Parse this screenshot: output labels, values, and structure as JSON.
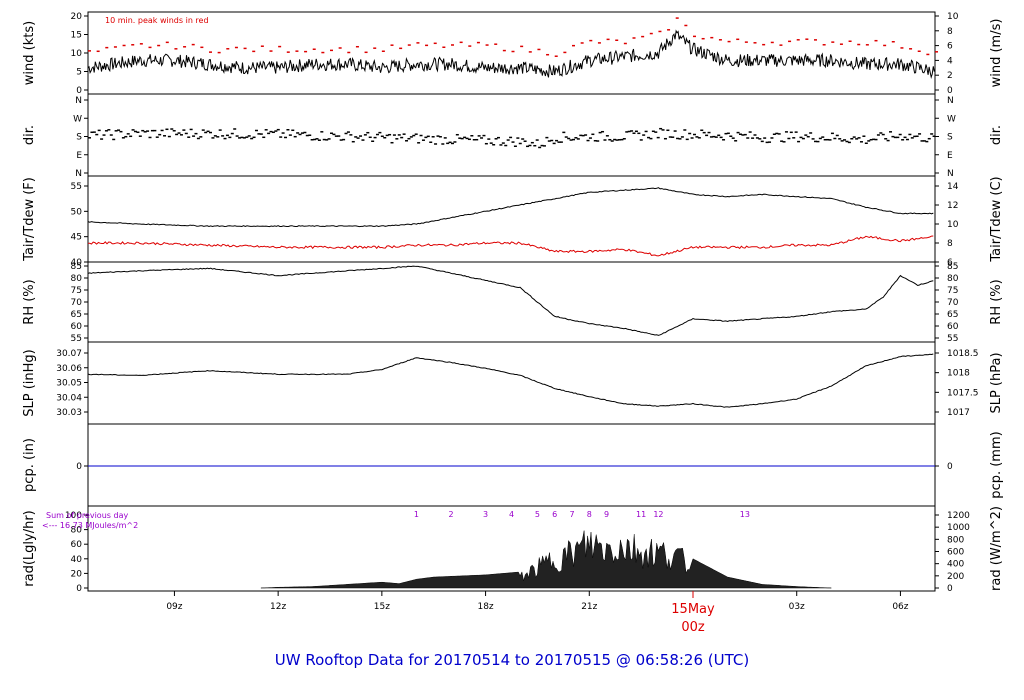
{
  "chart_data": {
    "type": "line",
    "title": "UW Rooftop Data for 20170514  to  20170515 @ 06:58:26  (UTC)",
    "x_axis": {
      "start": "2017-05-14T06:30Z",
      "end": "2017-05-15T07:00Z",
      "tick_labels": [
        "09z",
        "12z",
        "15z",
        "18z",
        "21z",
        "03z",
        "06z"
      ],
      "day_marker": {
        "date": "15May",
        "time": "00z",
        "color": "#dd0000"
      }
    },
    "panels": [
      {
        "id": "wind",
        "ylabel_left": "wind (kts)",
        "ylabel_right": "wind (m/s)",
        "ylim": [
          0,
          20
        ],
        "left_ticks": [
          "20",
          "15",
          "10",
          "5",
          "0"
        ],
        "right_ticks": [
          "10",
          "8",
          "6",
          "4",
          "2",
          "0"
        ],
        "annotation": "10 min. peak winds in red",
        "series": [
          {
            "color": "#000000",
            "hours": [
              6.5,
              8,
              9,
              10,
              11,
              12,
              13,
              14,
              15,
              16,
              17,
              18,
              19,
              20,
              21,
              22,
              23,
              23.5,
              24,
              25,
              26,
              27,
              28,
              29,
              30,
              31
            ],
            "values": [
              6,
              8,
              8,
              7,
              6,
              6,
              7,
              7,
              6,
              7,
              7,
              6,
              6,
              5,
              8,
              9,
              10,
              15,
              11,
              8,
              8,
              8,
              8,
              7,
              7,
              5
            ]
          },
          {
            "color": "#dd0000",
            "hours": [
              6.5,
              8,
              9,
              10,
              11,
              12,
              13,
              14,
              15,
              16,
              17,
              18,
              19,
              20,
              21,
              22,
              23,
              23.5,
              24,
              25,
              26,
              27,
              28,
              29,
              30,
              31
            ],
            "values": [
              10,
              12,
              12,
              11,
              11,
              11,
              11,
              11,
              11,
              12,
              12,
              12,
              11,
              10,
              13,
              13,
              15,
              19,
              15,
              13,
              13,
              13,
              13,
              13,
              12,
              10
            ],
            "style": "dashes"
          }
        ]
      },
      {
        "id": "dir",
        "ylabel_left": "dir.",
        "ylabel_right": "dir.",
        "ylim": [
          0,
          360
        ],
        "left_ticks": [
          "N",
          "W",
          "S",
          "E",
          "N"
        ],
        "right_ticks": [
          "N",
          "W",
          "S",
          "E",
          "N"
        ],
        "series": [
          {
            "color": "#000000",
            "style": "dots",
            "hours": [
              6.5,
              8,
              10,
              12,
              14,
              15,
              16,
              17,
              18,
              19,
              19.5,
              20,
              21,
              22,
              23,
              24,
              25,
              26,
              27,
              28,
              29,
              30,
              31
            ],
            "values": [
              185,
              195,
              195,
              190,
              180,
              175,
              170,
              165,
              160,
              155,
              140,
              175,
              180,
              180,
              195,
              190,
              185,
              175,
              180,
              175,
              165,
              185,
              170
            ]
          }
        ]
      },
      {
        "id": "temp",
        "ylabel_left": "Tair/Tdew (F)",
        "ylabel_right": "Tair/Tdew (C)",
        "ylim": [
          40,
          58
        ],
        "left_ticks": [
          "55",
          "50",
          "45",
          "40"
        ],
        "right_ticks": [
          "14",
          "12",
          "10",
          "8",
          "6"
        ],
        "series": [
          {
            "color": "#000000",
            "hours": [
              6.5,
              8,
              10,
              12,
              14,
              15,
              16,
              17,
              18,
              19,
              20,
              21,
              22,
              23,
              24,
              25,
              26,
              27,
              28,
              29,
              30,
              31
            ],
            "values": [
              49.5,
              49,
              48.5,
              48.5,
              48.5,
              48.5,
              49,
              50.5,
              52,
              53.5,
              55,
              56.5,
              57,
              57.5,
              56,
              55.5,
              56,
              55.5,
              55,
              53,
              51.5,
              51.5
            ]
          },
          {
            "color": "#dd0000",
            "hours": [
              6.5,
              8,
              10,
              12,
              14,
              15,
              16,
              17,
              18,
              19,
              20,
              21,
              22,
              23,
              24,
              25,
              26,
              27,
              28,
              29,
              30,
              31
            ],
            "values": [
              44.5,
              44.5,
              44,
              43.5,
              43.5,
              43.5,
              44,
              44,
              44.5,
              44.5,
              42.5,
              42.5,
              43,
              41.5,
              43.5,
              43.5,
              43.5,
              44,
              44,
              46,
              45,
              46
            ]
          }
        ]
      },
      {
        "id": "rh",
        "ylabel_left": "RH (%)",
        "ylabel_right": "RH (%)",
        "ylim": [
          55,
          85
        ],
        "left_ticks": [
          "85",
          "80",
          "75",
          "70",
          "65",
          "60",
          "55"
        ],
        "right_ticks": [
          "85",
          "80",
          "75",
          "70",
          "65",
          "60",
          "55"
        ],
        "series": [
          {
            "color": "#000000",
            "hours": [
              6.5,
              8,
              10,
              12,
              14,
              15,
              16,
              17,
              18,
              19,
              20,
              21,
              22,
              23,
              24,
              25,
              26,
              27,
              28,
              29,
              29.5,
              30,
              30.5,
              31
            ],
            "values": [
              82,
              83,
              84,
              81,
              83,
              84,
              85,
              82,
              79,
              76,
              64,
              61,
              59,
              56,
              63,
              62,
              63,
              64,
              66,
              67,
              72,
              81,
              77,
              79
            ]
          }
        ]
      },
      {
        "id": "slp",
        "ylabel_left": "SLP (inHg)",
        "ylabel_right": "SLP (hPa)",
        "ylim": [
          30.023,
          30.073
        ],
        "left_ticks": [
          "30.07",
          "30.06",
          "30.05",
          "30.04",
          "30.03"
        ],
        "right_ticks": [
          "1018.5",
          "1018",
          "1017.5",
          "1017"
        ],
        "series": [
          {
            "color": "#000000",
            "hours": [
              6.5,
              8,
              10,
              12,
              14,
              15,
              16,
              17,
              18,
              19,
              20,
              21,
              22,
              23,
              24,
              25,
              26,
              27,
              28,
              29,
              30,
              31
            ],
            "values": [
              30.055,
              30.054,
              30.058,
              30.055,
              30.055,
              30.059,
              30.069,
              30.065,
              30.06,
              30.054,
              30.043,
              30.036,
              30.03,
              30.028,
              30.03,
              30.027,
              30.03,
              30.034,
              30.045,
              30.062,
              30.07,
              30.072
            ]
          }
        ]
      },
      {
        "id": "pcp",
        "ylabel_left": "pcp. (in)",
        "ylabel_right": "pcp. (mm)",
        "ylim": [
          -1,
          1
        ],
        "left_ticks": [
          "0"
        ],
        "right_ticks": [
          "0"
        ],
        "series": [
          {
            "color": "#0000cc",
            "hours": [
              6.5,
              31
            ],
            "values": [
              0,
              0
            ]
          }
        ]
      },
      {
        "id": "rad",
        "ylabel_left": "rad(Lgly/hr)",
        "ylabel_right": "rad (W/m^2)",
        "ylim": [
          0,
          100
        ],
        "left_ticks": [
          "100",
          "80",
          "60",
          "40",
          "20",
          "0"
        ],
        "right_ticks": [
          "1200",
          "1000",
          "800",
          "600",
          "400",
          "200",
          "0"
        ],
        "annotation": [
          "Sum of previous day",
          "<--- 16.73 MJoules/m^2"
        ],
        "hour_labels": [
          "1",
          "2",
          "3",
          "4",
          "5",
          "6",
          "7",
          "8",
          "9",
          "11",
          "12",
          "13"
        ],
        "series": [
          {
            "color": "#000000",
            "style": "area",
            "hours": [
              11.5,
              12,
              13,
              14,
              15,
              15.5,
              16,
              16.5,
              17,
              18,
              19,
              19.5,
              20,
              20.5,
              21,
              21.5,
              22,
              22.5,
              23,
              23.5,
              24,
              25,
              26,
              27,
              28
            ],
            "values": [
              0,
              1,
              2,
              5,
              8,
              6,
              12,
              15,
              16,
              18,
              22,
              40,
              60,
              70,
              90,
              80,
              85,
              75,
              72,
              65,
              40,
              15,
              5,
              2,
              0
            ]
          }
        ]
      }
    ]
  }
}
